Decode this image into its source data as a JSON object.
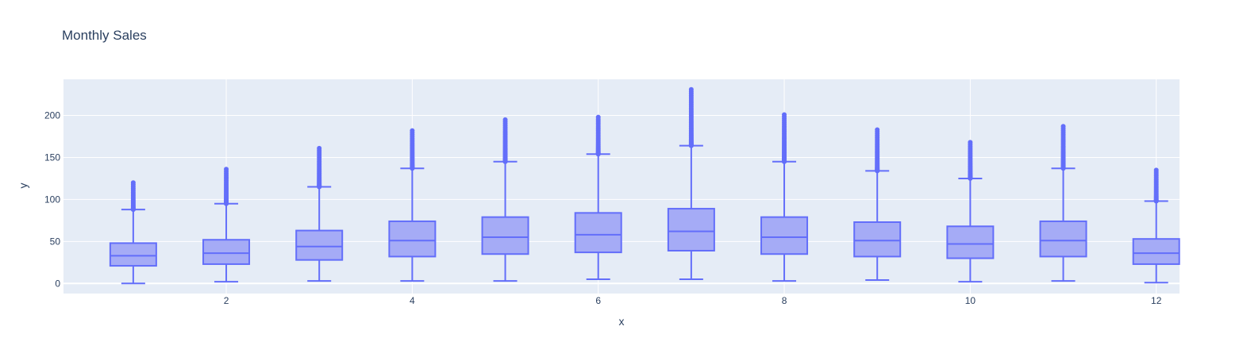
{
  "chart_data": {
    "type": "box",
    "title": "Monthly Sales",
    "xlabel": "x",
    "ylabel": "y",
    "xlim": [
      0.25,
      12.25
    ],
    "ylim": [
      -12,
      243
    ],
    "xticks": [
      2,
      4,
      6,
      8,
      10,
      12
    ],
    "yticks": [
      0,
      50,
      100,
      150,
      200
    ],
    "grid": true,
    "colors": {
      "plot_bg": "#e5ecf6",
      "grid": "#ffffff",
      "box_line": "#636efa",
      "box_fill": "#a5abf6",
      "text": "#2a3f5f"
    },
    "boxes": [
      {
        "x": 1,
        "min": 0,
        "q1": 21,
        "median": 33,
        "q3": 48,
        "upper_fence": 88,
        "max_outlier": 120
      },
      {
        "x": 2,
        "min": 2,
        "q1": 23,
        "median": 36,
        "q3": 52,
        "upper_fence": 95,
        "max_outlier": 136
      },
      {
        "x": 3,
        "min": 3,
        "q1": 28,
        "median": 44,
        "q3": 63,
        "upper_fence": 115,
        "max_outlier": 161
      },
      {
        "x": 4,
        "min": 3,
        "q1": 32,
        "median": 51,
        "q3": 74,
        "upper_fence": 137,
        "max_outlier": 182
      },
      {
        "x": 5,
        "min": 3,
        "q1": 35,
        "median": 55,
        "q3": 79,
        "upper_fence": 145,
        "max_outlier": 195
      },
      {
        "x": 6,
        "min": 5,
        "q1": 37,
        "median": 58,
        "q3": 84,
        "upper_fence": 154,
        "max_outlier": 198
      },
      {
        "x": 7,
        "min": 5,
        "q1": 39,
        "median": 62,
        "q3": 89,
        "upper_fence": 164,
        "max_outlier": 231
      },
      {
        "x": 8,
        "min": 3,
        "q1": 35,
        "median": 55,
        "q3": 79,
        "upper_fence": 145,
        "max_outlier": 201
      },
      {
        "x": 9,
        "min": 4,
        "q1": 32,
        "median": 51,
        "q3": 73,
        "upper_fence": 134,
        "max_outlier": 183
      },
      {
        "x": 10,
        "min": 2,
        "q1": 30,
        "median": 47,
        "q3": 68,
        "upper_fence": 125,
        "max_outlier": 168
      },
      {
        "x": 11,
        "min": 3,
        "q1": 32,
        "median": 51,
        "q3": 74,
        "upper_fence": 137,
        "max_outlier": 187
      },
      {
        "x": 12,
        "min": 1,
        "q1": 23,
        "median": 36,
        "q3": 53,
        "upper_fence": 98,
        "max_outlier": 135
      }
    ]
  }
}
